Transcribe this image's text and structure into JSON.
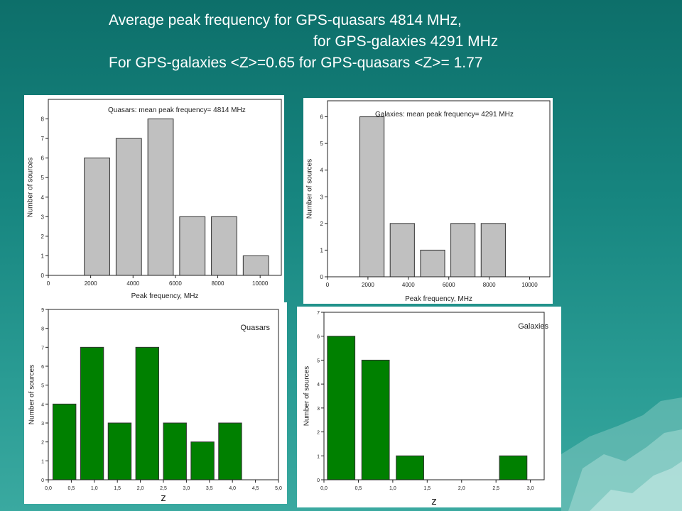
{
  "slide": {
    "title_line1": "Average peak frequency for GPS-quasars 4814 MHz,",
    "title_line2": "for GPS-galaxies 4291 MHz",
    "title_line3": "For GPS-galaxies <Z>=0.65 for GPS-quasars <Z>= 1.77",
    "background_color": "#178680",
    "title_color": "#ffffff"
  },
  "chart_data": [
    {
      "type": "bar",
      "annotation": "Quasars: mean peak frequency= 4814 MHz",
      "xlabel": "Peak frequency, MHz",
      "ylabel": "Number of sources",
      "xlim": [
        0,
        11000
      ],
      "ylim": [
        0,
        9
      ],
      "xticks": [
        0,
        2000,
        4000,
        6000,
        8000,
        10000
      ],
      "yticks": [
        0,
        1,
        2,
        3,
        4,
        5,
        6,
        7,
        8
      ],
      "xtick_labels": [
        "0",
        "2000",
        "4000",
        "6000",
        "8000",
        "10000"
      ],
      "ytick_labels": [
        "0",
        "1",
        "2",
        "3",
        "4",
        "5",
        "6",
        "7",
        "8"
      ],
      "bins": [
        [
          1700,
          2900
        ],
        [
          3200,
          4400
        ],
        [
          4700,
          5900
        ],
        [
          6200,
          7400
        ],
        [
          7700,
          8900
        ],
        [
          9200,
          10400
        ]
      ],
      "values": [
        6,
        7,
        8,
        3,
        3,
        1
      ],
      "bar_color": "#c0c0c0"
    },
    {
      "type": "bar",
      "annotation": "Galaxies: mean peak frequency= 4291 MHz",
      "xlabel": "Peak frequency, MHz",
      "ylabel": "Number of sources",
      "xlim": [
        0,
        11000
      ],
      "ylim": [
        0,
        6.6
      ],
      "xticks": [
        0,
        2000,
        4000,
        6000,
        8000,
        10000
      ],
      "yticks": [
        0,
        1,
        2,
        3,
        4,
        5,
        6
      ],
      "xtick_labels": [
        "0",
        "2000",
        "4000",
        "6000",
        "8000",
        "10000"
      ],
      "ytick_labels": [
        "0",
        "1",
        "2",
        "3",
        "4",
        "5",
        "6"
      ],
      "bins": [
        [
          1600,
          2800
        ],
        [
          3100,
          4300
        ],
        [
          4600,
          5800
        ],
        [
          6100,
          7300
        ],
        [
          7600,
          8800
        ]
      ],
      "values": [
        6,
        2,
        1,
        2,
        2
      ],
      "bar_color": "#c0c0c0"
    },
    {
      "type": "bar",
      "annotation": "Quasars",
      "xlabel": "z",
      "ylabel": "Number of sources",
      "xlim": [
        0,
        5
      ],
      "ylim": [
        0,
        9
      ],
      "xticks": [
        0,
        0.5,
        1,
        1.5,
        2,
        2.5,
        3,
        3.5,
        4,
        4.5,
        5
      ],
      "yticks": [
        0,
        1,
        2,
        3,
        4,
        5,
        6,
        7,
        8,
        9
      ],
      "xtick_labels": [
        "0,0",
        "0,5",
        "1,0",
        "1,5",
        "2,0",
        "2,5",
        "3,0",
        "3,5",
        "4,0",
        "4,5",
        "5,0"
      ],
      "ytick_labels": [
        "0",
        "1",
        "2",
        "3",
        "4",
        "5",
        "6",
        "7",
        "8",
        "9"
      ],
      "bins": [
        [
          0.1,
          0.6
        ],
        [
          0.7,
          1.2
        ],
        [
          1.3,
          1.8
        ],
        [
          1.9,
          2.4
        ],
        [
          2.5,
          3.0
        ],
        [
          3.1,
          3.6
        ],
        [
          3.7,
          4.2
        ]
      ],
      "values": [
        4,
        7,
        3,
        7,
        3,
        2,
        3
      ],
      "bar_color": "#008000"
    },
    {
      "type": "bar",
      "annotation": "Galaxies",
      "xlabel": "z",
      "ylabel": "Number of sources",
      "xlim": [
        0,
        3.2
      ],
      "ylim": [
        0,
        7
      ],
      "xticks": [
        0,
        0.5,
        1,
        1.5,
        2,
        2.5,
        3
      ],
      "yticks": [
        0,
        1,
        2,
        3,
        4,
        5,
        6,
        7
      ],
      "xtick_labels": [
        "0,0",
        "0,5",
        "1,0",
        "1,5",
        "2,0",
        "2,5",
        "3,0"
      ],
      "ytick_labels": [
        "0",
        "1",
        "2",
        "3",
        "4",
        "5",
        "6",
        "7"
      ],
      "bins": [
        [
          0.05,
          0.45
        ],
        [
          0.55,
          0.95
        ],
        [
          1.05,
          1.45
        ],
        [
          2.55,
          2.95
        ]
      ],
      "values": [
        6,
        5,
        1,
        1
      ],
      "bar_color": "#008000"
    }
  ]
}
